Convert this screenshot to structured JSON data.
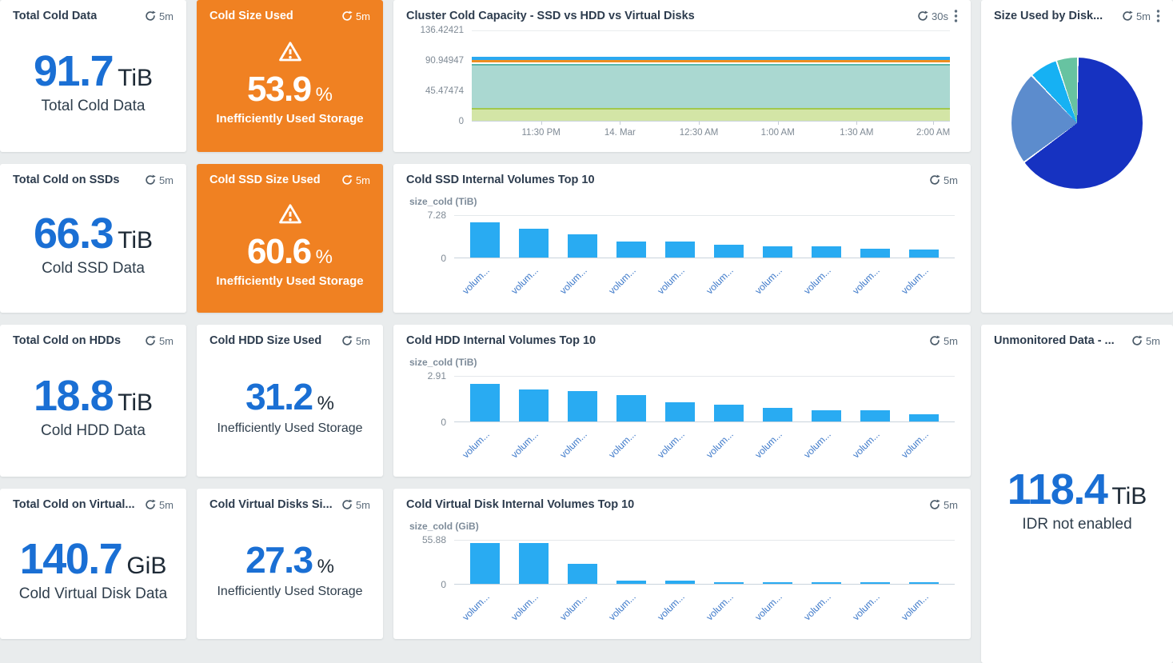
{
  "colors": {
    "accent_blue": "#1a6fd4",
    "alert_orange": "#f08122",
    "bar_blue": "#29abf2",
    "label_link_blue": "#3c78c9"
  },
  "cards": {
    "total_cold_data": {
      "title": "Total Cold Data",
      "refresh": "5m",
      "value": "91.7",
      "unit": "TiB",
      "label": "Total Cold Data"
    },
    "cold_size_used": {
      "title": "Cold Size Used",
      "refresh": "5m",
      "value": "53.9",
      "unit": "%",
      "label": "Inefficiently Used Storage"
    },
    "total_cold_ssd": {
      "title": "Total Cold on SSDs",
      "refresh": "5m",
      "value": "66.3",
      "unit": "TiB",
      "label": "Cold SSD Data"
    },
    "cold_ssd_size_used": {
      "title": "Cold SSD Size Used",
      "refresh": "5m",
      "value": "60.6",
      "unit": "%",
      "label": "Inefficiently Used Storage"
    },
    "total_cold_hdd": {
      "title": "Total Cold on HDDs",
      "refresh": "5m",
      "value": "18.8",
      "unit": "TiB",
      "label": "Cold HDD Data"
    },
    "cold_hdd_size_used": {
      "title": "Cold HDD Size Used",
      "refresh": "5m",
      "value": "31.2",
      "unit": "%",
      "label": "Inefficiently Used Storage"
    },
    "total_cold_virtual": {
      "title": "Total Cold on Virtual...",
      "refresh": "5m",
      "value": "140.7",
      "unit": "GiB",
      "label": "Cold Virtual Disk Data"
    },
    "cold_virtual_size_used": {
      "title": "Cold Virtual Disks Si...",
      "refresh": "5m",
      "value": "27.3",
      "unit": "%",
      "label": "Inefficiently Used Storage"
    },
    "size_used_by_disk": {
      "title": "Size Used by Disk...",
      "refresh": "5m"
    },
    "unmonitored": {
      "title": "Unmonitored Data - ...",
      "refresh": "5m",
      "value": "118.4",
      "unit": "TiB",
      "label": "IDR not enabled"
    }
  },
  "chart_data": [
    {
      "type": "area",
      "title": "Cluster Cold Capacity - SSD vs HDD vs Virtual Disks",
      "refresh": "30s",
      "ylim": [
        0,
        136.42421
      ],
      "yticks": [
        "136.42421",
        "90.94947",
        "45.47474",
        "0"
      ],
      "x": [
        "11:30 PM",
        "14. Mar",
        "12:30 AM",
        "1:00 AM",
        "1:30 AM",
        "2:00 AM"
      ],
      "grid": true,
      "series": [
        {
          "name": "green-band",
          "kind": "band",
          "from": 0,
          "to": 18.8,
          "fill": "#d3e5a6",
          "edge": "#a2c84d"
        },
        {
          "name": "teal-band",
          "kind": "band",
          "from": 18.8,
          "to": 86.0,
          "fill": "#aad8d1",
          "edge": "#5ab7aa"
        },
        {
          "name": "orange-line",
          "kind": "line",
          "at": 88.4,
          "color": "#ee8e20",
          "thickness": 3
        },
        {
          "name": "blue-line",
          "kind": "line",
          "at": 92.3,
          "color": "#2aa9f1",
          "thickness": 4
        }
      ]
    },
    {
      "type": "bar",
      "title": "Cold SSD Internal Volumes Top 10",
      "refresh": "5m",
      "ylabel": "size_cold (TiB)",
      "ymax": 7.28,
      "yticks": [
        "7.28",
        "0"
      ],
      "bar_color": "#29abf2",
      "categories": [
        "volum...",
        "volum...",
        "volum...",
        "volum...",
        "volum...",
        "volum...",
        "volum...",
        "volum...",
        "volum...",
        "volum..."
      ],
      "values": [
        6.2,
        5.1,
        4.0,
        2.8,
        2.8,
        2.2,
        2.0,
        2.0,
        1.6,
        1.4
      ]
    },
    {
      "type": "bar",
      "title": "Cold HDD Internal Volumes Top 10",
      "refresh": "5m",
      "ylabel": "size_cold (TiB)",
      "ymax": 2.91,
      "yticks": [
        "2.91",
        "0"
      ],
      "bar_color": "#29abf2",
      "categories": [
        "volum...",
        "volum...",
        "volum...",
        "volum...",
        "volum...",
        "volum...",
        "volum...",
        "volum...",
        "volum...",
        "volum..."
      ],
      "values": [
        2.45,
        2.1,
        2.0,
        1.7,
        1.25,
        1.1,
        0.87,
        0.72,
        0.74,
        0.46
      ]
    },
    {
      "type": "bar",
      "title": "Cold Virtual Disk Internal Volumes Top 10",
      "refresh": "5m",
      "ylabel": "size_cold (GiB)",
      "ymax": 55.88,
      "yticks": [
        "55.88",
        "0"
      ],
      "bar_color": "#29abf2",
      "categories": [
        "volum...",
        "volum...",
        "volum...",
        "volum...",
        "volum...",
        "volum...",
        "volum...",
        "volum...",
        "volum...",
        "volum..."
      ],
      "values": [
        52.5,
        52.5,
        26.4,
        4.4,
        4.4,
        2.0,
        2.0,
        2.0,
        2.0,
        2.0
      ]
    },
    {
      "type": "pie",
      "title": "Size Used by Disk...",
      "slices": [
        {
          "color": "#1632c1",
          "percent": 64.7
        },
        {
          "color": "#5c8ccd",
          "percent": 23.0
        },
        {
          "color": "#16b1f3",
          "percent": 7.0
        },
        {
          "color": "#67c3a1",
          "percent": 5.3
        }
      ]
    }
  ]
}
